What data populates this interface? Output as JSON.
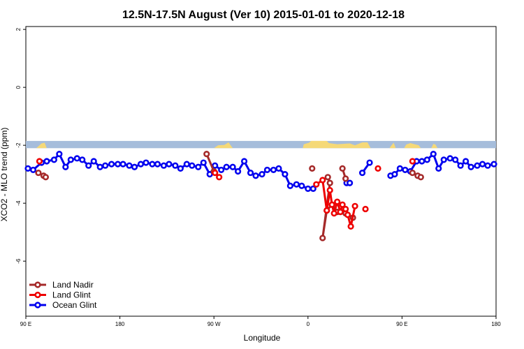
{
  "chart_data": {
    "type": "line",
    "title": "12.5N-17.5N August (Ver 10)   2015-01-01 to 2020-12-18",
    "xlabel": "Longitude",
    "ylabel": "XCO2 - MLO trend (ppm)",
    "x_ticks": [
      {
        "value": 90,
        "label": "90 E"
      },
      {
        "value": 180,
        "label": "180"
      },
      {
        "value": 270,
        "label": "90 W"
      },
      {
        "value": 360,
        "label": "0"
      },
      {
        "value": 450,
        "label": "90 E"
      },
      {
        "value": 540,
        "label": "180"
      }
    ],
    "y_ticks": [
      {
        "value": 2,
        "label": "2"
      },
      {
        "value": 0,
        "label": "0"
      },
      {
        "value": -2,
        "label": "-2"
      },
      {
        "value": -4,
        "label": "-4"
      },
      {
        "value": -6,
        "label": "-6"
      }
    ],
    "xlim": [
      90,
      540
    ],
    "ylim": [
      -7.9,
      2.1
    ],
    "land_band": {
      "y_top": -1.85,
      "y_bottom": -2.1,
      "ocean_color": "#a6bddb",
      "land_color": "#f5d978"
    },
    "legend": {
      "position": "bottom-left",
      "items": [
        "Land Nadir",
        "Land Glint",
        "Ocean Glint"
      ]
    },
    "series": [
      {
        "name": "Ocean Glint",
        "color": "#0000ee",
        "segments": [
          [
            [
              92,
              -2.8
            ],
            [
              97,
              -2.85
            ],
            [
              105,
              -2.6
            ],
            [
              110,
              -2.55
            ],
            [
              117,
              -2.5
            ],
            [
              122,
              -2.3
            ],
            [
              128,
              -2.75
            ],
            [
              133,
              -2.5
            ],
            [
              139,
              -2.45
            ],
            [
              144,
              -2.5
            ],
            [
              150,
              -2.7
            ],
            [
              155,
              -2.55
            ],
            [
              161,
              -2.75
            ],
            [
              166,
              -2.7
            ],
            [
              172,
              -2.65
            ],
            [
              178,
              -2.65
            ],
            [
              183,
              -2.65
            ],
            [
              189,
              -2.7
            ],
            [
              194,
              -2.75
            ],
            [
              200,
              -2.65
            ],
            [
              205,
              -2.6
            ],
            [
              211,
              -2.65
            ],
            [
              216,
              -2.65
            ],
            [
              222,
              -2.7
            ],
            [
              227,
              -2.65
            ],
            [
              233,
              -2.7
            ],
            [
              238,
              -2.8
            ],
            [
              244,
              -2.65
            ],
            [
              249,
              -2.7
            ],
            [
              255,
              -2.75
            ],
            [
              260,
              -2.6
            ],
            [
              266,
              -3.0
            ],
            [
              271,
              -2.7
            ],
            [
              277,
              -2.85
            ],
            [
              282,
              -2.75
            ],
            [
              288,
              -2.75
            ],
            [
              293,
              -2.9
            ],
            [
              299,
              -2.55
            ],
            [
              305,
              -2.95
            ],
            [
              310,
              -3.05
            ],
            [
              316,
              -3.0
            ],
            [
              321,
              -2.85
            ],
            [
              327,
              -2.85
            ],
            [
              332,
              -2.8
            ],
            [
              338,
              -3.0
            ],
            [
              343,
              -3.4
            ],
            [
              349,
              -3.35
            ],
            [
              354,
              -3.4
            ],
            [
              360,
              -3.5
            ],
            [
              365,
              -3.5
            ]
          ],
          [
            [
              397,
              -3.3
            ],
            [
              400,
              -3.3
            ]
          ],
          [
            [
              412,
              -2.95
            ],
            [
              419,
              -2.6
            ]
          ],
          [
            [
              439,
              -3.05
            ],
            [
              443,
              -3.0
            ],
            [
              448,
              -2.8
            ],
            [
              453,
              -2.85
            ],
            [
              458,
              -2.9
            ],
            [
              464,
              -2.55
            ],
            [
              469,
              -2.55
            ],
            [
              474,
              -2.5
            ],
            [
              480,
              -2.3
            ],
            [
              485,
              -2.8
            ],
            [
              490,
              -2.5
            ],
            [
              496,
              -2.45
            ],
            [
              501,
              -2.5
            ],
            [
              506,
              -2.7
            ],
            [
              511,
              -2.55
            ],
            [
              516,
              -2.75
            ],
            [
              522,
              -2.7
            ],
            [
              527,
              -2.65
            ],
            [
              532,
              -2.7
            ],
            [
              538,
              -2.65
            ]
          ]
        ]
      },
      {
        "name": "Land Nadir",
        "color": "#a52a2a",
        "segments": [
          [
            [
              102,
              -2.95
            ],
            [
              107,
              -3.05
            ],
            [
              109,
              -3.1
            ]
          ],
          [
            [
              263,
              -2.3
            ],
            [
              270,
              -2.9
            ]
          ],
          [
            [
              364,
              -2.8
            ]
          ],
          [
            [
              379,
              -3.1
            ],
            [
              381,
              -3.3
            ],
            [
              374,
              -5.2
            ],
            [
              378,
              -4.25
            ],
            [
              383,
              -4.05
            ],
            [
              388,
              -4.3
            ],
            [
              396,
              -4.35
            ],
            [
              403,
              -4.5
            ]
          ],
          [
            [
              393,
              -2.8
            ],
            [
              396,
              -3.15
            ]
          ],
          [
            [
              460,
              -2.95
            ],
            [
              465,
              -3.05
            ],
            [
              468,
              -3.1
            ]
          ]
        ]
      },
      {
        "name": "Land Glint",
        "color": "#ee0000",
        "segments": [
          [
            [
              103,
              -2.55
            ]
          ],
          [
            [
              271,
              -2.95
            ],
            [
              275,
              -3.1
            ]
          ],
          [
            [
              368,
              -3.35
            ],
            [
              374,
              -3.2
            ],
            [
              378,
              -4.25
            ],
            [
              381,
              -3.55
            ],
            [
              383,
              -4.05
            ],
            [
              385,
              -4.35
            ],
            [
              388,
              -3.95
            ],
            [
              391,
              -4.3
            ],
            [
              393,
              -4.05
            ],
            [
              396,
              -4.2
            ],
            [
              398,
              -4.4
            ],
            [
              401,
              -4.8
            ],
            [
              405,
              -4.1
            ]
          ],
          [
            [
              415,
              -4.2
            ]
          ],
          [
            [
              427,
              -2.8
            ]
          ],
          [
            [
              460,
              -2.55
            ]
          ]
        ]
      }
    ]
  }
}
